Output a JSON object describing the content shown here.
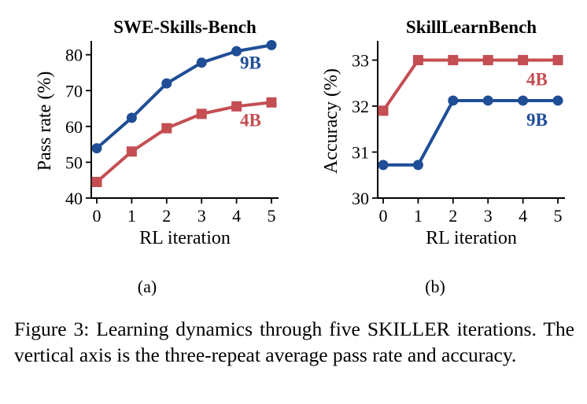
{
  "chart_data": [
    {
      "type": "line",
      "title": "SWE-Skills-Bench",
      "xlabel": "RL iteration",
      "ylabel": "Pass rate (%)",
      "sublabel": "(a)",
      "x": [
        0,
        1,
        2,
        3,
        4,
        5
      ],
      "xticks": [
        "0",
        "1",
        "2",
        "3",
        "4",
        "5"
      ],
      "xlim": [
        0,
        5
      ],
      "ylim": [
        40,
        83
      ],
      "yticks": [
        40,
        50,
        60,
        70,
        80
      ],
      "grid": false,
      "series": [
        {
          "name": "9B",
          "color": "#1f4e96",
          "marker": "circle",
          "values": [
            53.9,
            62.4,
            72.0,
            77.8,
            81.0,
            82.7
          ],
          "label_pos": "below-right"
        },
        {
          "name": "4B",
          "color": "#c44e52",
          "marker": "square",
          "values": [
            44.5,
            53.0,
            59.5,
            63.5,
            65.6,
            66.7
          ],
          "label_pos": "below-right"
        }
      ]
    },
    {
      "type": "line",
      "title": "SkillLearnBench",
      "xlabel": "RL iteration",
      "ylabel": "Accuracy (%)",
      "sublabel": "(b)",
      "x": [
        0,
        1,
        2,
        3,
        4,
        5
      ],
      "xticks": [
        "0",
        "1",
        "2",
        "3",
        "4",
        "5"
      ],
      "xlim": [
        0,
        5
      ],
      "ylim": [
        30,
        33.35
      ],
      "yticks": [
        30,
        31,
        32,
        33
      ],
      "grid": false,
      "series": [
        {
          "name": "4B",
          "color": "#c44e52",
          "marker": "square",
          "values": [
            31.9,
            33.0,
            33.0,
            33.0,
            33.0,
            33.0
          ],
          "label_pos": "below-right"
        },
        {
          "name": "9B",
          "color": "#1f4e96",
          "marker": "circle",
          "values": [
            30.72,
            30.72,
            32.12,
            32.12,
            32.12,
            32.12
          ],
          "label_pos": "below-right"
        }
      ]
    }
  ],
  "caption": "Figure 3: Learning dynamics through five SKILLER iterations. The vertical axis is the three-repeat average pass rate and accuracy."
}
